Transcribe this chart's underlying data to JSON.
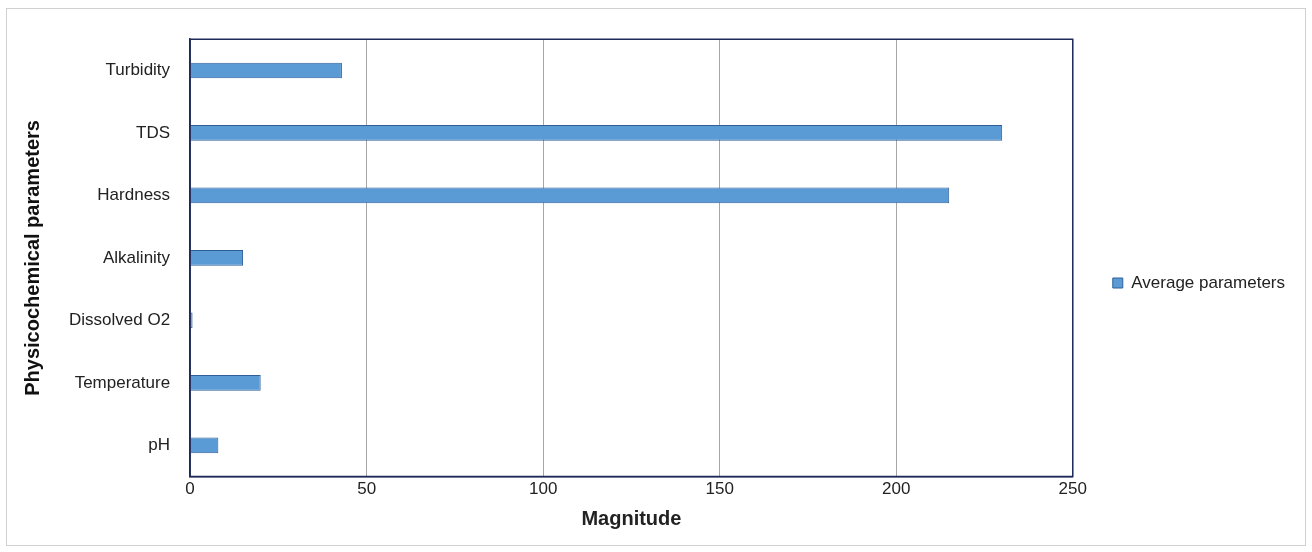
{
  "chart_data": {
    "type": "bar",
    "orientation": "horizontal",
    "categories": [
      "Turbidity",
      "TDS",
      "Hardness",
      "Alkalinity",
      "Dissolved O2",
      "Temperature",
      "pH"
    ],
    "series": [
      {
        "name": "Average parameters",
        "color": "#5b9bd5",
        "values": [
          43,
          230,
          215,
          15,
          0.7,
          20,
          8
        ]
      }
    ],
    "xlabel": "Magnitude",
    "ylabel": "Physicochemical parameters",
    "xlim": [
      0,
      250
    ],
    "xticks": [
      0,
      50,
      100,
      150,
      200,
      250
    ],
    "grid": "x",
    "legend": "right"
  }
}
